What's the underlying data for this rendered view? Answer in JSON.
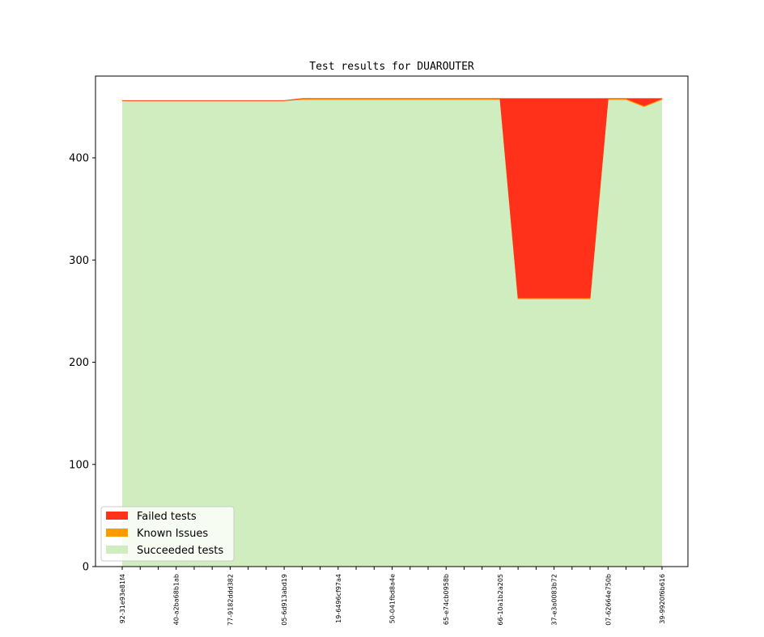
{
  "chart_data": {
    "type": "area",
    "stacked": true,
    "title": "Test results for DUAROUTER",
    "xlabel": "",
    "ylabel": "",
    "ylim": [
      0,
      480
    ],
    "yticks": [
      0,
      100,
      200,
      300,
      400
    ],
    "xtick_labels": [
      "92-31e93e81f4",
      "40-a2ba68b1ab",
      "77-9182ddd382",
      "05-6d913abd19",
      "19-6496cf97a4",
      "50-041fbd8a4e",
      "65-e74cb0958b",
      "66-10a1b2a205",
      "37-e3a0083b72",
      "07-62664e750b",
      "39-9920f6b616"
    ],
    "x_count": 31,
    "labeled_tick_every": 3,
    "series": [
      {
        "name": "Succeeded tests",
        "color": "#d0edbf",
        "values": [
          456,
          456,
          456,
          456,
          456,
          456,
          456,
          456,
          456,
          456,
          457,
          457,
          457,
          457,
          457,
          457,
          457,
          457,
          457,
          457,
          457,
          457,
          262,
          262,
          262,
          262,
          262,
          457,
          457,
          450,
          457
        ]
      },
      {
        "name": "Known Issues",
        "color": "#ff9900",
        "values": [
          0,
          0,
          0,
          0,
          0,
          0,
          0,
          0,
          0,
          0,
          1,
          1,
          1,
          1,
          1,
          1,
          1,
          1,
          1,
          1,
          1,
          1,
          1,
          1,
          1,
          1,
          1,
          1,
          1,
          1,
          1
        ]
      },
      {
        "name": "Failed tests",
        "color": "#ff311a",
        "values": [
          0,
          0,
          0,
          0,
          0,
          0,
          0,
          0,
          0,
          0,
          0,
          0,
          0,
          0,
          0,
          0,
          0,
          0,
          0,
          0,
          0,
          0,
          195,
          195,
          195,
          195,
          195,
          0,
          0,
          7,
          0
        ]
      }
    ],
    "legend": {
      "position": "lower-left",
      "order": [
        "Failed tests",
        "Known Issues",
        "Succeeded tests"
      ]
    },
    "grid": false
  }
}
